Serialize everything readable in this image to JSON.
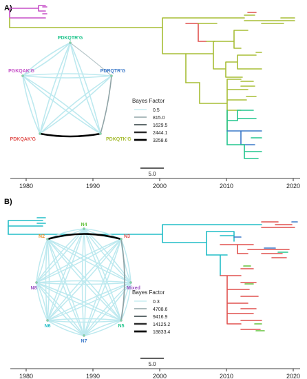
{
  "colors": {
    "magenta": "#c64fc7",
    "olive": "#a7bd35",
    "red": "#e0514e",
    "teal": "#22c58d",
    "blue": "#3a78c9",
    "cyan": "#22bdc7",
    "purple": "#9a4fc0",
    "orange": "#e8902a",
    "green": "#63c13a",
    "net_light": "#bde9ef",
    "grey1": "#8fa3a6",
    "grey2": "#667"
  },
  "panel_a": {
    "label": "A)",
    "network": {
      "nodes": [
        {
          "id": "PDKQTR'G",
          "color": "#22c58d"
        },
        {
          "id": "PDRQTR'G",
          "color": "#3a78c9"
        },
        {
          "id": "PDKQTK'G",
          "color": "#a7bd35"
        },
        {
          "id": "PDKQAK'G",
          "color": "#e0514e"
        },
        {
          "id": "PGKQAK'G",
          "color": "#c64fc7"
        }
      ]
    },
    "legend": {
      "title": "Bayes Factor",
      "values": [
        "0.5",
        "815.0",
        "1629.5",
        "2444.1",
        "3258.6"
      ]
    },
    "scale_bar": "5.0",
    "axis_ticks": [
      "1980",
      "1990",
      "2000",
      "2010",
      "2020"
    ]
  },
  "panel_b": {
    "label": "B)",
    "network": {
      "nodes": [
        {
          "id": "N4",
          "color": "#63c13a"
        },
        {
          "id": "N3",
          "color": "#e0514e"
        },
        {
          "id": "Mixed",
          "color": "#9a4fc0"
        },
        {
          "id": "N5",
          "color": "#22c58d"
        },
        {
          "id": "N7",
          "color": "#3a78c9"
        },
        {
          "id": "N6",
          "color": "#22bdc7"
        },
        {
          "id": "N8",
          "color": "#9a4fc0"
        },
        {
          "id": "N2",
          "color": "#e8902a"
        }
      ]
    },
    "legend": {
      "title": "Bayes Factor",
      "values": [
        "0.3",
        "4708.6",
        "9416.9",
        "14125.2",
        "18833.4"
      ]
    },
    "scale_bar": "5.0",
    "axis_ticks": [
      "1980",
      "1990",
      "2000",
      "2010",
      "2020"
    ]
  }
}
